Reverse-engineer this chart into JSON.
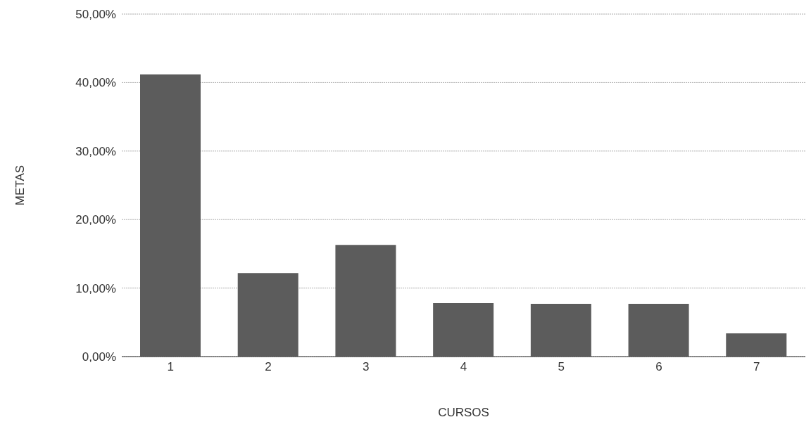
{
  "chart_data": {
    "type": "bar",
    "xlabel": "CURSOS",
    "ylabel": "METAS",
    "categories": [
      "1",
      "2",
      "3",
      "4",
      "5",
      "6",
      "7"
    ],
    "values": [
      41.2,
      12.2,
      16.3,
      7.8,
      7.7,
      7.7,
      3.4
    ],
    "color": "#5c5c5c",
    "ylim": [
      0,
      50
    ],
    "yticks": [
      {
        "value": 0,
        "label": "0,00%"
      },
      {
        "value": 10,
        "label": "10,00%"
      },
      {
        "value": 20,
        "label": "20,00%"
      },
      {
        "value": 30,
        "label": "30,00%"
      },
      {
        "value": 40,
        "label": "40,00%"
      },
      {
        "value": 50,
        "label": "50,00%"
      }
    ],
    "grid": "y"
  }
}
